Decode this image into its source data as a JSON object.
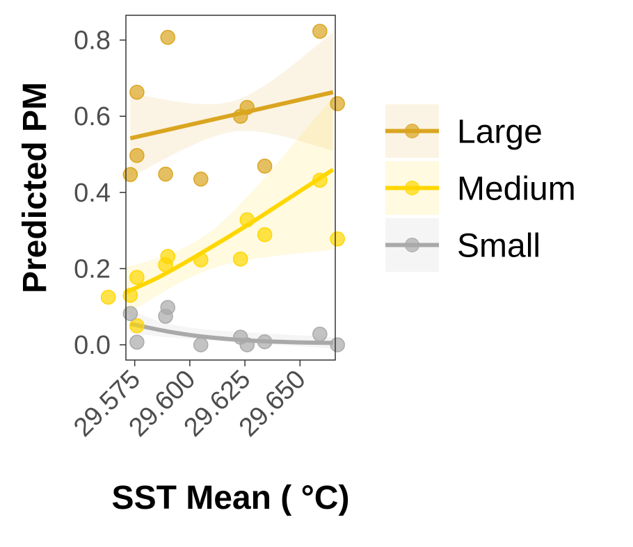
{
  "chart_data": {
    "type": "scatter",
    "xlabel": "SST Mean ( °C)",
    "ylabel": "Predicted PM",
    "xlim": [
      29.571,
      29.666
    ],
    "ylim": [
      -0.04,
      0.865
    ],
    "x_ticks": [
      29.575,
      29.6,
      29.625,
      29.65
    ],
    "x_tick_labels": [
      "29.575",
      "29.600",
      "29.625",
      "29.650"
    ],
    "y_ticks": [
      0.0,
      0.2,
      0.4,
      0.6,
      0.8
    ],
    "y_tick_labels": [
      "0.0",
      "0.2",
      "0.4",
      "0.6",
      "0.8"
    ],
    "grid": false,
    "legend_position": "right",
    "series": [
      {
        "name": "Large",
        "color": "#DAA520",
        "points": [
          {
            "x": 29.573,
            "y": 0.447
          },
          {
            "x": 29.576,
            "y": 0.663
          },
          {
            "x": 29.576,
            "y": 0.497
          },
          {
            "x": 29.589,
            "y": 0.448
          },
          {
            "x": 29.59,
            "y": 0.807
          },
          {
            "x": 29.605,
            "y": 0.435
          },
          {
            "x": 29.623,
            "y": 0.6
          },
          {
            "x": 29.626,
            "y": 0.623
          },
          {
            "x": 29.634,
            "y": 0.469
          },
          {
            "x": 29.659,
            "y": 0.823
          },
          {
            "x": 29.667,
            "y": 0.633
          }
        ],
        "fit": [
          {
            "x": 29.573,
            "y": 0.542
          },
          {
            "x": 29.665,
            "y": 0.663
          }
        ],
        "ci_upper": [
          {
            "x": 29.573,
            "y": 0.66
          },
          {
            "x": 29.62,
            "y": 0.64
          },
          {
            "x": 29.665,
            "y": 0.82
          }
        ],
        "ci_lower": [
          {
            "x": 29.573,
            "y": 0.44
          },
          {
            "x": 29.62,
            "y": 0.56
          },
          {
            "x": 29.665,
            "y": 0.51
          }
        ]
      },
      {
        "name": "Medium",
        "color": "#FFD700",
        "points": [
          {
            "x": 29.563,
            "y": 0.125
          },
          {
            "x": 29.573,
            "y": 0.13
          },
          {
            "x": 29.576,
            "y": 0.05
          },
          {
            "x": 29.576,
            "y": 0.177
          },
          {
            "x": 29.589,
            "y": 0.21
          },
          {
            "x": 29.59,
            "y": 0.232
          },
          {
            "x": 29.605,
            "y": 0.223
          },
          {
            "x": 29.623,
            "y": 0.225
          },
          {
            "x": 29.626,
            "y": 0.328
          },
          {
            "x": 29.634,
            "y": 0.289
          },
          {
            "x": 29.659,
            "y": 0.432
          },
          {
            "x": 29.667,
            "y": 0.278
          }
        ],
        "fit": [
          {
            "x": 29.563,
            "y": 0.118
          },
          {
            "x": 29.585,
            "y": 0.175
          },
          {
            "x": 29.605,
            "y": 0.24
          },
          {
            "x": 29.625,
            "y": 0.31
          },
          {
            "x": 29.645,
            "y": 0.385
          },
          {
            "x": 29.665,
            "y": 0.46
          }
        ],
        "ci_upper": [
          {
            "x": 29.563,
            "y": 0.19
          },
          {
            "x": 29.61,
            "y": 0.3
          },
          {
            "x": 29.665,
            "y": 0.65
          }
        ],
        "ci_lower": [
          {
            "x": 29.563,
            "y": 0.05
          },
          {
            "x": 29.61,
            "y": 0.2
          },
          {
            "x": 29.665,
            "y": 0.25
          }
        ]
      },
      {
        "name": "Small",
        "color": "#A9A9A9",
        "points": [
          {
            "x": 29.573,
            "y": 0.082
          },
          {
            "x": 29.576,
            "y": 0.007
          },
          {
            "x": 29.589,
            "y": 0.075
          },
          {
            "x": 29.59,
            "y": 0.098
          },
          {
            "x": 29.605,
            "y": 0.0
          },
          {
            "x": 29.623,
            "y": 0.02
          },
          {
            "x": 29.626,
            "y": 0.0
          },
          {
            "x": 29.634,
            "y": 0.008
          },
          {
            "x": 29.659,
            "y": 0.028
          },
          {
            "x": 29.667,
            "y": 0.0
          }
        ],
        "fit": [
          {
            "x": 29.573,
            "y": 0.055
          },
          {
            "x": 29.59,
            "y": 0.035
          },
          {
            "x": 29.605,
            "y": 0.022
          },
          {
            "x": 29.625,
            "y": 0.012
          },
          {
            "x": 29.645,
            "y": 0.007
          },
          {
            "x": 29.665,
            "y": 0.005
          }
        ],
        "ci_upper": [
          {
            "x": 29.573,
            "y": 0.09
          },
          {
            "x": 29.6,
            "y": 0.045
          },
          {
            "x": 29.665,
            "y": 0.02
          }
        ],
        "ci_lower": [
          {
            "x": 29.573,
            "y": 0.03
          },
          {
            "x": 29.6,
            "y": 0.015
          },
          {
            "x": 29.665,
            "y": -0.01
          }
        ]
      }
    ]
  }
}
